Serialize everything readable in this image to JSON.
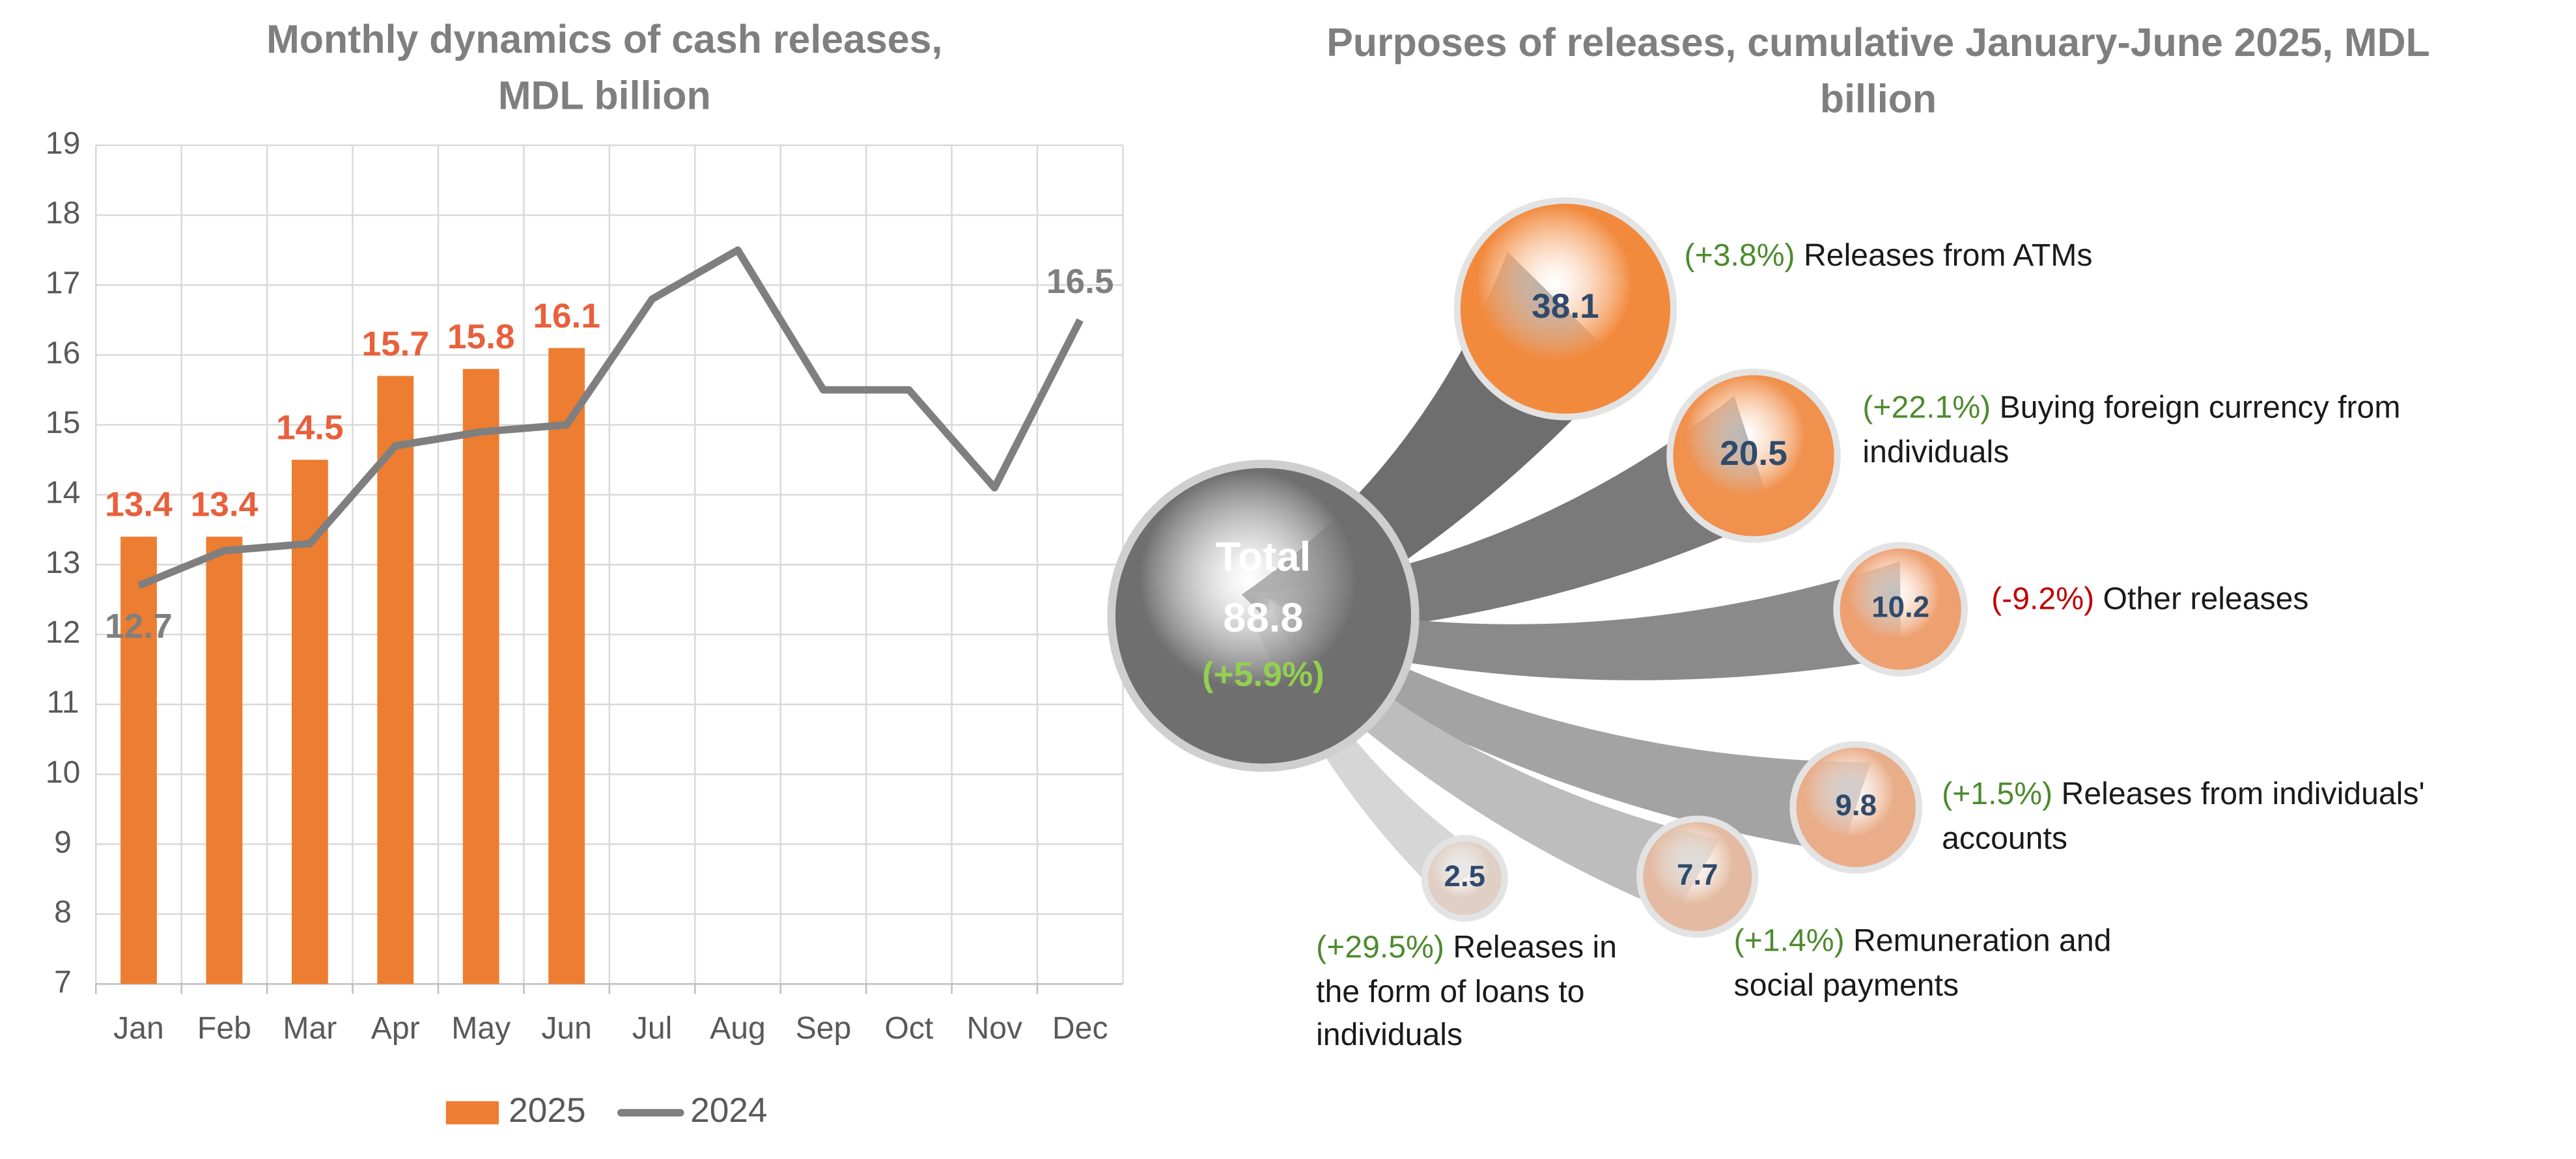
{
  "chart_data": [
    {
      "type": "bar",
      "title": "Monthly dynamics of cash releases, MDL billion",
      "categories": [
        "Jan",
        "Feb",
        "Mar",
        "Apr",
        "May",
        "Jun",
        "Jul",
        "Aug",
        "Sep",
        "Oct",
        "Nov",
        "Dec"
      ],
      "series": [
        {
          "name": "2025",
          "type": "bar",
          "color": "#ed7d31",
          "label_color": "#e8603c",
          "values": [
            13.4,
            13.4,
            14.5,
            15.7,
            15.8,
            16.1,
            null,
            null,
            null,
            null,
            null,
            null
          ]
        },
        {
          "name": "2024",
          "type": "line",
          "color": "#7f7f7f",
          "label_color": "#7f7f7f",
          "label_points": "ends",
          "values": [
            12.7,
            13.2,
            13.3,
            14.7,
            14.9,
            15.0,
            16.8,
            17.5,
            15.5,
            15.5,
            14.1,
            16.5
          ]
        }
      ],
      "ylim": [
        7,
        19
      ],
      "yticks": [
        7,
        8,
        9,
        10,
        11,
        12,
        13,
        14,
        15,
        16,
        17,
        18,
        19
      ],
      "grid": true,
      "legend": "bottom"
    },
    {
      "type": "bubble",
      "title": "Purposes of releases, cumulative January-June 2025, MDL billion",
      "total": {
        "label": "Total",
        "value": 88.8,
        "change": "(+5.9%)",
        "color": "#6f6f6f",
        "change_color": "#92d050"
      },
      "items": [
        {
          "name": "Releases from ATMs",
          "value": 38.1,
          "change": "(+3.8%)",
          "change_color": "#4e8a2e",
          "color": "#f28a3e"
        },
        {
          "name": "Buying foreign currency from individuals",
          "value": 20.5,
          "change": "(+22.1%)",
          "change_color": "#4e8a2e",
          "color": "#f0914e"
        },
        {
          "name": "Other releases",
          "value": 10.2,
          "change": "(-9.2%)",
          "change_color": "#c00000",
          "color": "#eea070"
        },
        {
          "name": "Releases from individuals' accounts",
          "value": 9.8,
          "change": "(+1.5%)",
          "change_color": "#4e8a2e",
          "color": "#e9ad8a"
        },
        {
          "name": "Remuneration and social payments",
          "value": 7.7,
          "change": "(+1.4%)",
          "change_color": "#4e8a2e",
          "color": "#e4bba2"
        },
        {
          "name": "Releases in the form of loans to individuals",
          "value": 2.5,
          "change": "(+29.5%)",
          "change_color": "#4e8a2e",
          "color": "#e0cfc4"
        }
      ]
    }
  ]
}
